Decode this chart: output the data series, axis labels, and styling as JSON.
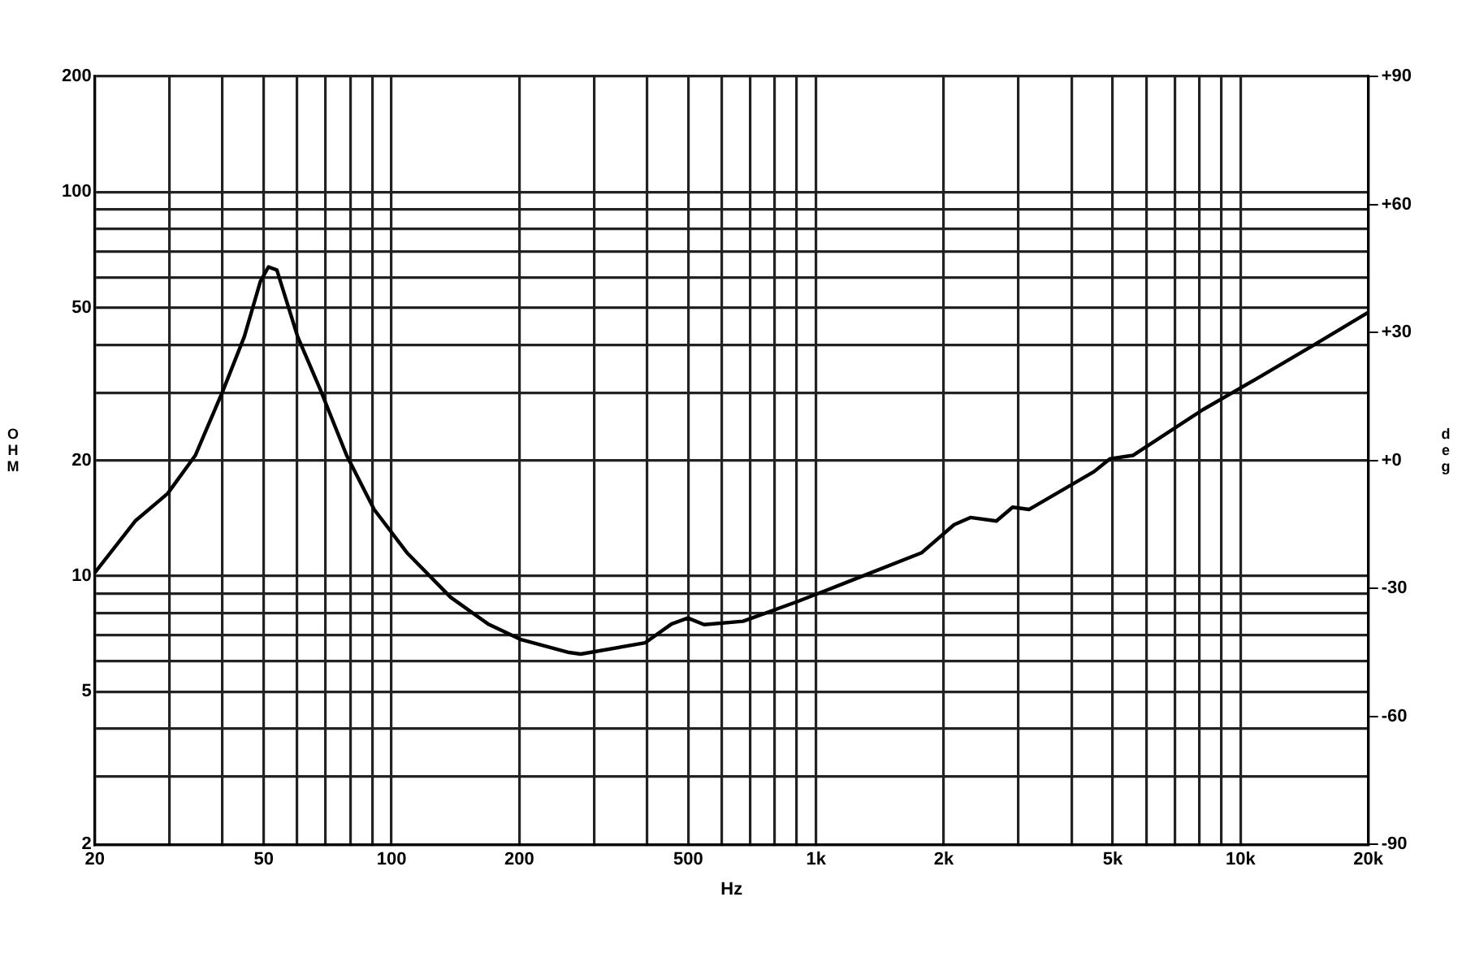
{
  "chart_data": {
    "type": "line",
    "xlabel": "Hz",
    "ylabel": "OHM",
    "y2label": "deg",
    "log": "xy",
    "grid": true,
    "legend": false,
    "marker": "none",
    "line_style": "solid",
    "xlim": [
      20,
      20000
    ],
    "xticks": [
      20,
      {
        "value": 30,
        "label": null
      },
      {
        "value": 40,
        "label": null
      },
      50,
      {
        "value": 60,
        "label": null
      },
      {
        "value": 70,
        "label": null
      },
      {
        "value": 80,
        "label": null
      },
      {
        "value": 90,
        "label": null
      },
      100,
      200,
      {
        "value": 300,
        "label": null
      },
      {
        "value": 400,
        "label": null
      },
      500,
      {
        "value": 600,
        "label": null
      },
      {
        "value": 700,
        "label": null
      },
      {
        "value": 800,
        "label": null
      },
      {
        "value": 900,
        "label": null
      },
      {
        "value": 1000,
        "label": "1k"
      },
      {
        "value": 2000,
        "label": "2k"
      },
      {
        "value": 3000,
        "label": null
      },
      {
        "value": 4000,
        "label": null
      },
      {
        "value": 5000,
        "label": "5k"
      },
      {
        "value": 6000,
        "label": null
      },
      {
        "value": 7000,
        "label": null
      },
      {
        "value": 8000,
        "label": null
      },
      {
        "value": 9000,
        "label": null
      },
      {
        "value": 10000,
        "label": "10k"
      },
      {
        "value": 20000,
        "label": "20k"
      }
    ],
    "ylim": [
      2,
      200
    ],
    "yticks": [
      2,
      {
        "value": 3,
        "label": null
      },
      {
        "value": 4,
        "label": null
      },
      5,
      {
        "value": 6,
        "label": null
      },
      {
        "value": 7,
        "label": null
      },
      {
        "value": 8,
        "label": null
      },
      {
        "value": 9,
        "label": null
      },
      10,
      20,
      {
        "value": 30,
        "label": null
      },
      {
        "value": 40,
        "label": null
      },
      50,
      {
        "value": 60,
        "label": null
      },
      {
        "value": 70,
        "label": null
      },
      {
        "value": 80,
        "label": null
      },
      {
        "value": 90,
        "label": null
      },
      100,
      200
    ],
    "y2lim": [
      -90,
      90
    ],
    "y2ticks": [
      {
        "value": 90,
        "label": "+90"
      },
      {
        "value": 60,
        "label": "+60"
      },
      {
        "value": 30,
        "label": "+30"
      },
      {
        "value": 0,
        "label": "+0"
      },
      -30,
      -60,
      -90
    ],
    "series": [
      {
        "color": "#000000",
        "x": [
          20,
          24.9,
          29.7,
          34.5,
          40.1,
          45,
          49.1,
          51.3,
          53.7,
          60.1,
          68.1,
          78.4,
          91,
          108.7,
          137.8,
          168.8,
          201,
          262,
          279,
          396,
          457,
          499,
          545,
          673,
          900,
          1205,
          1775,
          2115,
          2310,
          2660,
          2905,
          3175,
          4520,
          4930,
          5575,
          8150,
          10890,
          14690,
          20000
        ],
        "values": [
          10.2,
          13.9,
          16.4,
          20.6,
          30.4,
          42,
          58.5,
          63.8,
          62.6,
          42,
          30.4,
          20.6,
          14.9,
          11.5,
          8.8,
          7.5,
          6.84,
          6.32,
          6.26,
          6.7,
          7.5,
          7.77,
          7.47,
          7.62,
          8.56,
          9.71,
          11.5,
          13.6,
          14.2,
          13.9,
          15.1,
          14.9,
          18.7,
          20.2,
          20.6,
          27.1,
          32.6,
          39.6,
          48.6
        ]
      }
    ]
  }
}
